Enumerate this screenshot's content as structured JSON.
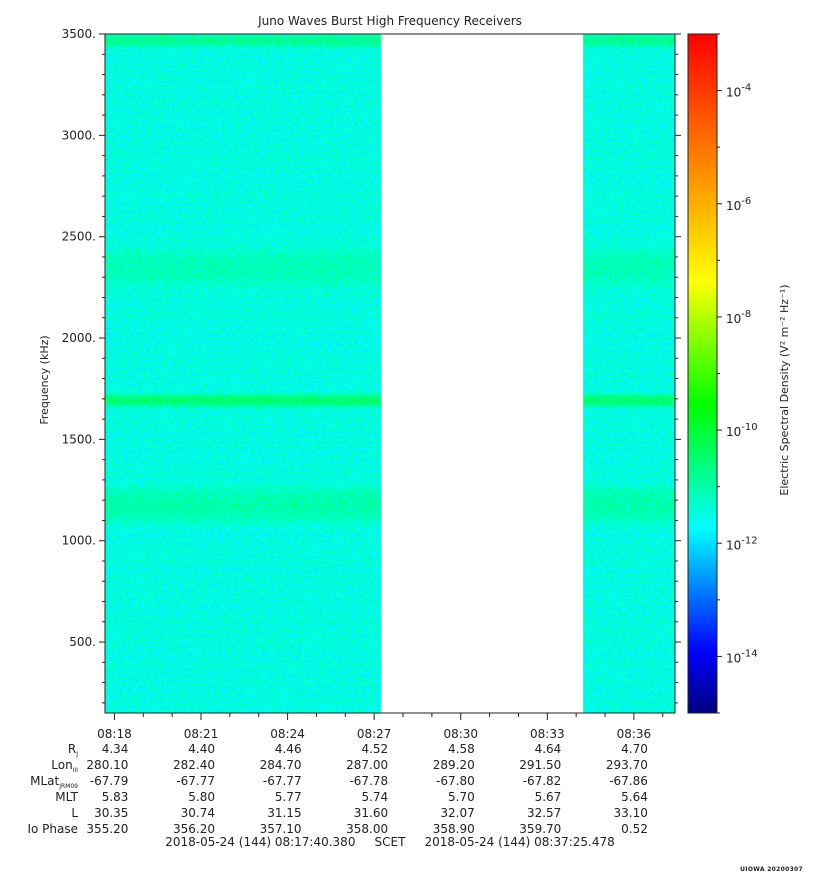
{
  "chart_data": {
    "type": "heatmap",
    "title": "Juno Waves Burst High Frequency Receivers",
    "ylabel": "Frequency (kHz)",
    "ylim": [
      150,
      3500
    ],
    "yticks": [
      500,
      1000,
      1500,
      2000,
      2500,
      3000,
      3500
    ],
    "ytick_labels": [
      "500.",
      "1000.",
      "1500.",
      "2000.",
      "2500.",
      "3000.",
      "3500."
    ],
    "x_start": "08:17:40.380",
    "x_end": "08:37:25.478",
    "xtick_labels": [
      "08:18",
      "08:21",
      "08:24",
      "08:27",
      "08:30",
      "08:33",
      "08:36"
    ],
    "xtick_minutes": [
      18,
      21,
      24,
      27,
      30,
      33,
      36
    ],
    "data_intervals": [
      {
        "start": "08:17:40",
        "end": "08:27:15"
      },
      {
        "start": "08:34:15",
        "end": "08:37:25"
      }
    ],
    "background_level_log10": -11.5,
    "bands": [
      {
        "center_khz": 3470,
        "width_khz": 30,
        "log10": -10.8
      },
      {
        "center_khz": 2350,
        "width_khz": 120,
        "log10": -11.1
      },
      {
        "center_khz": 1695,
        "width_khz": 25,
        "log10": -10.5
      },
      {
        "center_khz": 1180,
        "width_khz": 100,
        "log10": -11.0
      }
    ],
    "colorbar": {
      "label": "Electric Spectral Density (V² m⁻² Hz⁻¹)",
      "label_main": "Electric Spectral Density (V",
      "range_log10": [
        -15,
        -3
      ],
      "tick_exponents": [
        -14,
        -12,
        -10,
        -8,
        -6,
        -4
      ],
      "tick_base": "10",
      "tick_powers": [
        "-14",
        "-12",
        "-10",
        "-8",
        "-6",
        "-4"
      ],
      "colors": [
        "#00007f",
        "#0000ff",
        "#007fff",
        "#00ffff",
        "#00ff7f",
        "#00ff00",
        "#7fff00",
        "#ffff00",
        "#ffbf00",
        "#ff7f00",
        "#ff3f00",
        "#ff0000"
      ]
    }
  },
  "ephemeris": {
    "rows": [
      {
        "label": "R",
        "sub": "J",
        "values": [
          "4.34",
          "4.40",
          "4.46",
          "4.52",
          "4.58",
          "4.64",
          "4.70"
        ]
      },
      {
        "label": "Lon",
        "sub": "III",
        "values": [
          "280.10",
          "282.40",
          "284.70",
          "287.00",
          "289.20",
          "291.50",
          "293.70"
        ]
      },
      {
        "label": "MLat",
        "sub": "JRM09",
        "values": [
          "-67.79",
          "-67.77",
          "-67.77",
          "-67.78",
          "-67.80",
          "-67.82",
          "-67.86"
        ]
      },
      {
        "label": "MLT",
        "sub": "",
        "values": [
          "5.83",
          "5.80",
          "5.77",
          "5.74",
          "5.70",
          "5.67",
          "5.64"
        ]
      },
      {
        "label": "L",
        "sub": "",
        "values": [
          "30.35",
          "30.74",
          "31.15",
          "31.60",
          "32.07",
          "32.57",
          "33.10"
        ]
      },
      {
        "label": "Io Phase",
        "sub": "",
        "values": [
          "355.20",
          "356.20",
          "357.10",
          "358.00",
          "358.90",
          "359.70",
          "0.52"
        ]
      }
    ]
  },
  "scet": {
    "start": "2018-05-24 (144) 08:17:40.380",
    "label": "SCET",
    "end": "2018-05-24 (144) 08:37:25.478"
  },
  "stamp": "UIOWA 20200307"
}
